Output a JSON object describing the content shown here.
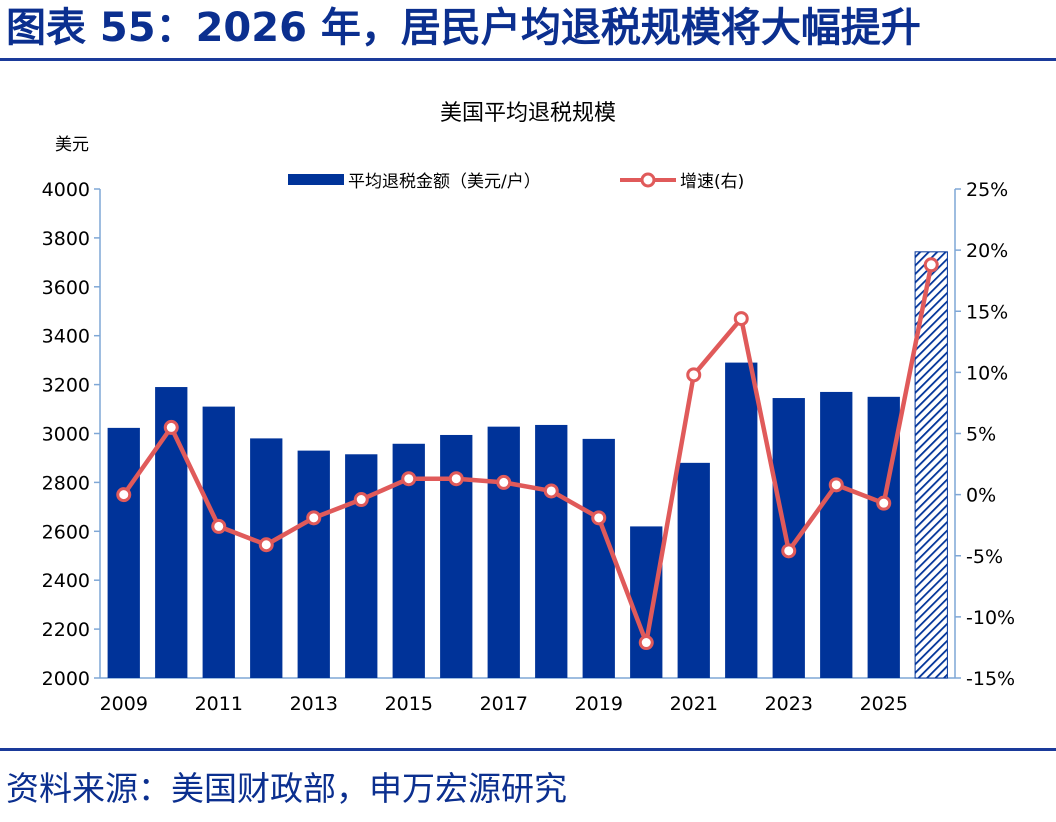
{
  "header": {
    "title": "图表 55：2026 年，居民户均退税规模将大幅提升"
  },
  "footer": {
    "source": "资料来源：美国财政部，申万宏源研究"
  },
  "colors": {
    "bar": "#003399",
    "line": "#e05a5a",
    "axis": "#7fa7d6",
    "rule": "#1a3a9a"
  },
  "chart_data": {
    "type": "bar",
    "title": "美国平均退税规模",
    "left_unit": "美元",
    "legend": {
      "bar_label": "平均退税金额（美元/户）",
      "line_label": "增速(右)",
      "placement": "top-center"
    },
    "x": [
      2009,
      2010,
      2011,
      2012,
      2013,
      2014,
      2015,
      2016,
      2017,
      2018,
      2019,
      2020,
      2021,
      2022,
      2023,
      2024,
      2025,
      2026
    ],
    "x_tick_labels": [
      "2009",
      "2011",
      "2013",
      "2015",
      "2017",
      "2019",
      "2021",
      "2023",
      "2025"
    ],
    "y_left": {
      "min": 2000,
      "max": 4000,
      "step": 200,
      "tick_labels": [
        "2000",
        "2200",
        "2400",
        "2600",
        "2800",
        "3000",
        "3200",
        "3400",
        "3600",
        "3800",
        "4000"
      ]
    },
    "y_right": {
      "min": -15,
      "max": 25,
      "step": 5,
      "tick_labels": [
        "-15%",
        "-10%",
        "-5%",
        "0%",
        "5%",
        "10%",
        "15%",
        "20%",
        "25%"
      ]
    },
    "series": [
      {
        "name": "平均退税金额（美元/户）",
        "type": "bar",
        "axis": "left",
        "values": [
          3023,
          3190,
          3110,
          2980,
          2930,
          2915,
          2958,
          2994,
          3028,
          3035,
          2978,
          2620,
          2880,
          3290,
          3145,
          3170,
          3150,
          3743
        ],
        "forecast_from": 2026
      },
      {
        "name": "增速(右)",
        "type": "line",
        "axis": "right",
        "values": [
          0.0,
          5.5,
          -2.6,
          -4.1,
          -1.9,
          -0.4,
          1.3,
          1.3,
          1.0,
          0.3,
          -1.9,
          -12.1,
          9.8,
          14.4,
          -4.6,
          0.8,
          -0.7,
          18.8
        ]
      }
    ],
    "grid": false
  }
}
